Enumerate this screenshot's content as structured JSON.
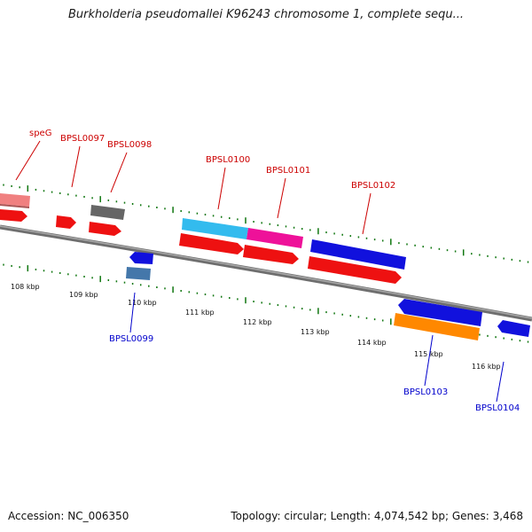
{
  "title": "Burkholderia pseudomallei K96243 chromosome 1, complete sequ...",
  "footer": {
    "accession": "Accession: NC_006350",
    "summary": "Topology: circular; Length: 4,074,542 bp; Genes: 3,468"
  },
  "colors": {
    "upper_label": "#cc0000",
    "lower_label": "#0000cc",
    "backbone": "#808080",
    "ticks": "#117711",
    "gene_red": "#ee1111",
    "gene_blue": "#1111dd"
  },
  "kbp_ticks": [
    "108 kbp",
    "109 kbp",
    "110 kbp",
    "111 kbp",
    "112 kbp",
    "113 kbp",
    "114 kbp",
    "115 kbp",
    "116 kbp"
  ],
  "genes_upper": [
    {
      "name": "speG"
    },
    {
      "name": "BPSL0097"
    },
    {
      "name": "BPSL0098"
    },
    {
      "name": "BPSL0100"
    },
    {
      "name": "BPSL0101"
    },
    {
      "name": "BPSL0102"
    }
  ],
  "genes_lower": [
    {
      "name": "BPSL0099"
    },
    {
      "name": "BPSL0103"
    },
    {
      "name": "BPSL0104"
    }
  ]
}
